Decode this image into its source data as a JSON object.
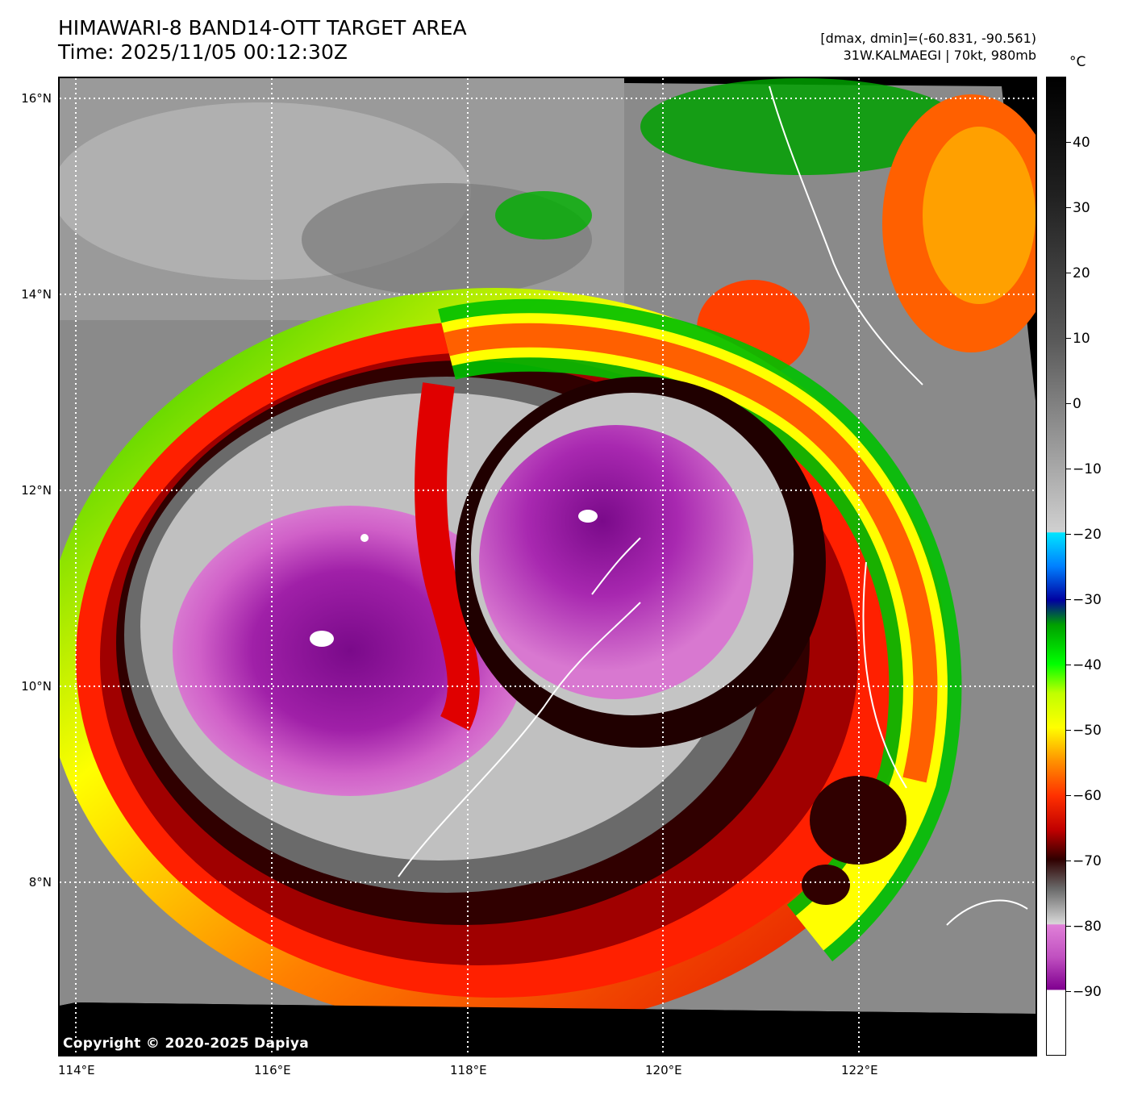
{
  "header": {
    "title_line1": "HIMAWARI-8 BAND14-OTT TARGET AREA",
    "title_line2": "Time: 2025/11/05 00:12:30Z",
    "range_text": "[dmax, dmin]=(-60.831, -90.561)",
    "storm_text": "31W.KALMAEGI | 70kt, 980mb"
  },
  "map": {
    "lat_labels": [
      "16°N",
      "14°N",
      "12°N",
      "10°N",
      "8°N"
    ],
    "lon_labels": [
      "114°E",
      "116°E",
      "118°E",
      "120°E",
      "122°E"
    ],
    "copyright": "Copyright © 2020-2025 Dapiya",
    "grid": "dotted white lines every 2 degrees",
    "lat_range": [
      6.6,
      16.2
    ],
    "lon_range": [
      113.8,
      123.8
    ]
  },
  "colorbar": {
    "unit": "°C",
    "tick_labels": [
      "40",
      "30",
      "20",
      "10",
      "0",
      "−10",
      "−20",
      "−30",
      "−40",
      "−50",
      "−60",
      "−70",
      "−80",
      "−90"
    ],
    "range": [
      -100,
      50
    ],
    "colors": {
      "warm_top": "#000000",
      "gray_mid": "#bfbfbf",
      "cyan": "#00e5ff",
      "blue": "#0000a0",
      "green": "#00e000",
      "yellow": "#ffff00",
      "orange": "#ff8000",
      "red": "#e00000",
      "dark_red": "#300000",
      "magenta": "#e070d0",
      "purple": "#800090",
      "white_bottom": "#ffffff"
    }
  }
}
